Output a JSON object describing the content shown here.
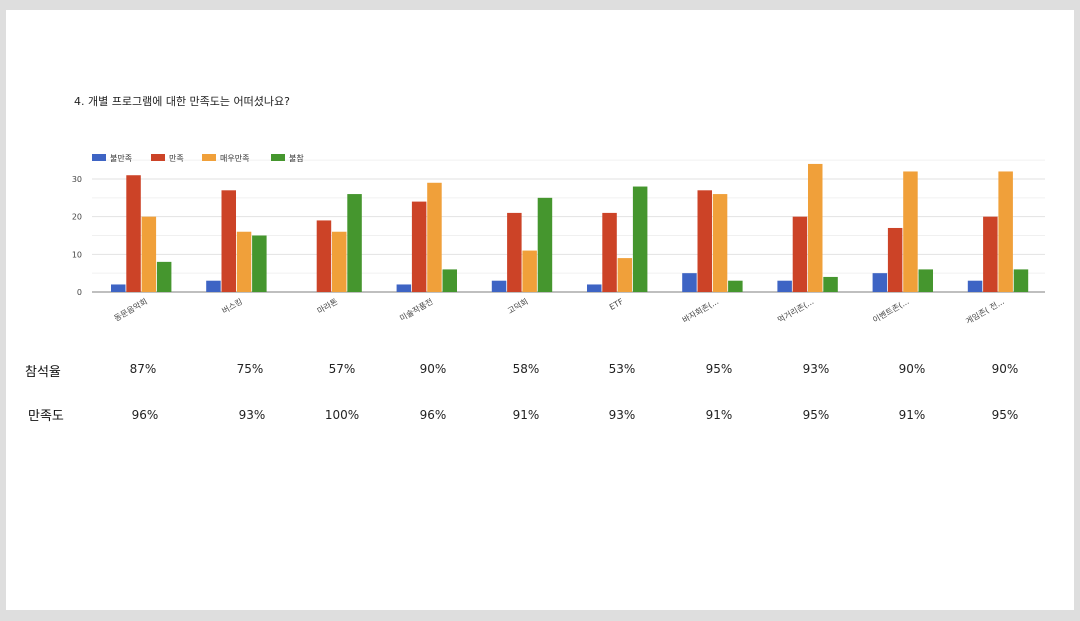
{
  "question_title": "4. 개별 프로그램에 대한 만족도는 어떠셨나요?",
  "chart_data": {
    "type": "bar",
    "title": "",
    "categories": [
      "동문음악회",
      "버스킹",
      "마라톤",
      "미술작품전",
      "고덕회",
      "ETF",
      "바자회존(...",
      "먹거리존(...",
      "이벤트존(...",
      "게임존( 전..."
    ],
    "series": [
      {
        "name": "불만족",
        "color": "#3e64c4",
        "values": [
          2,
          3,
          0,
          2,
          3,
          2,
          5,
          3,
          5,
          3
        ]
      },
      {
        "name": "만족",
        "color": "#cc4327",
        "values": [
          31,
          27,
          19,
          24,
          21,
          21,
          27,
          20,
          17,
          20
        ]
      },
      {
        "name": "매우만족",
        "color": "#f0a03a",
        "values": [
          20,
          16,
          16,
          29,
          11,
          9,
          26,
          34,
          32,
          32
        ]
      },
      {
        "name": "불참",
        "color": "#45962e",
        "values": [
          8,
          15,
          26,
          6,
          25,
          28,
          3,
          4,
          6,
          6
        ]
      }
    ],
    "yticks": [
      0,
      10,
      20,
      30
    ],
    "ylim": [
      0,
      35
    ],
    "grid": true,
    "legend": "top-left"
  },
  "table": {
    "rows": [
      {
        "label": "참석율",
        "values": [
          "87%",
          "75%",
          "57%",
          "90%",
          "58%",
          "53%",
          "95%",
          "93%",
          "90%",
          "90%"
        ]
      },
      {
        "label": "만족도",
        "values": [
          "96%",
          "93%",
          "100%",
          "96%",
          "91%",
          "93%",
          "91%",
          "95%",
          "91%",
          "95%"
        ]
      }
    ]
  }
}
